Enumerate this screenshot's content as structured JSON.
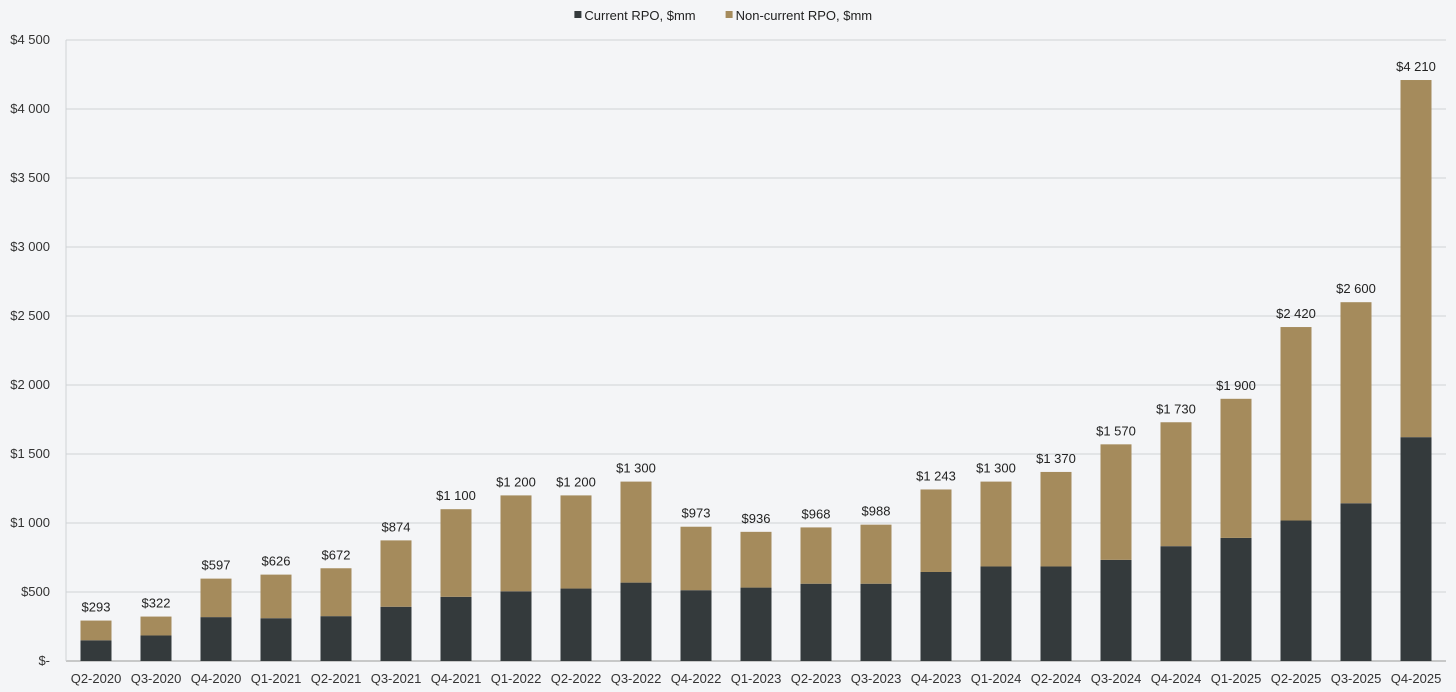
{
  "chart_data": {
    "type": "bar",
    "stacked": true,
    "categories": [
      "Q2-2020",
      "Q3-2020",
      "Q4-2020",
      "Q1-2021",
      "Q2-2021",
      "Q3-2021",
      "Q4-2021",
      "Q1-2022",
      "Q2-2022",
      "Q3-2022",
      "Q4-2022",
      "Q1-2023",
      "Q2-2023",
      "Q3-2023",
      "Q4-2023",
      "Q1-2024",
      "Q2-2024",
      "Q3-2024",
      "Q4-2024",
      "Q1-2025",
      "Q2-2025",
      "Q3-2025",
      "Q4-2025"
    ],
    "series": [
      {
        "name": "Current RPO, $mm",
        "color": "#343a3c",
        "values": [
          150,
          185,
          318,
          310,
          325,
          393,
          465,
          505,
          525,
          568,
          513,
          532,
          560,
          560,
          645,
          685,
          685,
          733,
          832,
          892,
          1018,
          1143,
          1622
        ]
      },
      {
        "name": "Non-current RPO, $mm",
        "color": "#a58b5c",
        "values": [
          143,
          137,
          279,
          316,
          347,
          481,
          635,
          695,
          675,
          732,
          460,
          404,
          408,
          428,
          598,
          615,
          685,
          837,
          898,
          1008,
          1402,
          1457,
          2588
        ]
      }
    ],
    "totals": [
      293,
      322,
      597,
      626,
      672,
      874,
      1100,
      1200,
      1200,
      1300,
      973,
      936,
      968,
      988,
      1243,
      1300,
      1370,
      1570,
      1730,
      1900,
      2420,
      2600,
      4210
    ],
    "total_labels": [
      "$293",
      "$322",
      "$597",
      "$626",
      "$672",
      "$874",
      "$1 100",
      "$1 200",
      "$1 200",
      "$1 300",
      "$973",
      "$936",
      "$968",
      "$988",
      "$1 243",
      "$1 300",
      "$1 370",
      "$1 570",
      "$1 730",
      "$1 900",
      "$2 420",
      "$2 600",
      "$4 210"
    ],
    "ylim": [
      0,
      4500
    ],
    "yticks": [
      0,
      500,
      1000,
      1500,
      2000,
      2500,
      3000,
      3500,
      4000,
      4500
    ],
    "ytick_labels": [
      "$-",
      "$500",
      "$1 000",
      "$1 500",
      "$2 000",
      "$2 500",
      "$3 000",
      "$3 500",
      "$4 000",
      "$4 500"
    ],
    "title": "",
    "xlabel": "",
    "ylabel": "",
    "grid": true,
    "legend_position": "top-center"
  }
}
